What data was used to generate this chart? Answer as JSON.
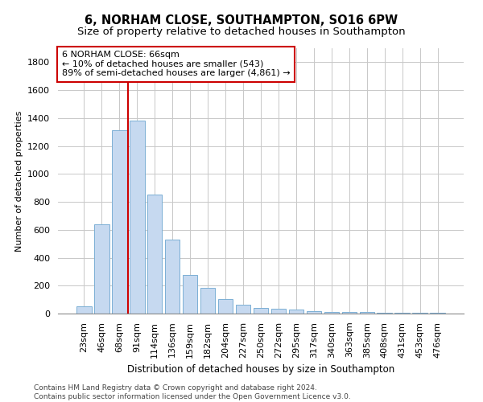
{
  "title": "6, NORHAM CLOSE, SOUTHAMPTON, SO16 6PW",
  "subtitle": "Size of property relative to detached houses in Southampton",
  "xlabel": "Distribution of detached houses by size in Southampton",
  "ylabel": "Number of detached properties",
  "categories": [
    "23sqm",
    "46sqm",
    "68sqm",
    "91sqm",
    "114sqm",
    "136sqm",
    "159sqm",
    "182sqm",
    "204sqm",
    "227sqm",
    "250sqm",
    "272sqm",
    "295sqm",
    "317sqm",
    "340sqm",
    "363sqm",
    "385sqm",
    "408sqm",
    "431sqm",
    "453sqm",
    "476sqm"
  ],
  "values": [
    50,
    640,
    1310,
    1380,
    850,
    530,
    275,
    185,
    105,
    65,
    40,
    35,
    30,
    20,
    10,
    10,
    10,
    5,
    5,
    5,
    5
  ],
  "bar_color": "#c6d9f0",
  "bar_edgecolor": "#7bafd4",
  "redline_color": "#cc0000",
  "annotation_line1": "6 NORHAM CLOSE: 66sqm",
  "annotation_line2": "← 10% of detached houses are smaller (543)",
  "annotation_line3": "89% of semi-detached houses are larger (4,861) →",
  "annotation_box_color": "#ffffff",
  "annotation_border_color": "#cc0000",
  "ylim": [
    0,
    1900
  ],
  "yticks": [
    0,
    200,
    400,
    600,
    800,
    1000,
    1200,
    1400,
    1600,
    1800
  ],
  "footer1": "Contains HM Land Registry data © Crown copyright and database right 2024.",
  "footer2": "Contains public sector information licensed under the Open Government Licence v3.0.",
  "bg_color": "#ffffff",
  "grid_color": "#c8c8c8",
  "title_fontsize": 10.5,
  "subtitle_fontsize": 9.5,
  "xlabel_fontsize": 8.5,
  "ylabel_fontsize": 8,
  "tick_fontsize": 8,
  "footer_fontsize": 6.5,
  "ann_fontsize": 8
}
